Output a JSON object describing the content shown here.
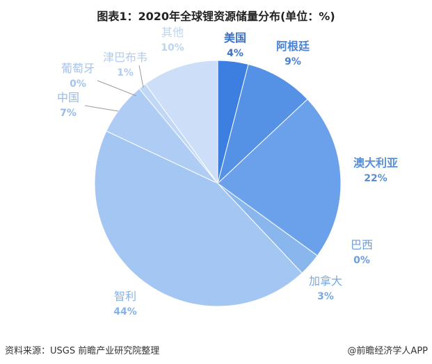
{
  "chart_data": {
    "type": "pie",
    "title": "图表1：2020年全球锂资源储量分布(单位：%)",
    "start": "top",
    "direction": "clockwise",
    "slices": [
      {
        "label": "美国",
        "value": 4,
        "pct": "4%",
        "color": "#3d7fe0",
        "text": "#3a72c8"
      },
      {
        "label": "阿根廷",
        "value": 9,
        "pct": "9%",
        "color": "#5592e6",
        "text": "#4a82d4"
      },
      {
        "label": "澳大利亚",
        "value": 22,
        "pct": "22%",
        "color": "#6aa1ea",
        "text": "#5a8fd8"
      },
      {
        "label": "巴西",
        "value": 0,
        "pct": "0%",
        "color": "#7aacec",
        "text": "#6a9ede"
      },
      {
        "label": "加拿大",
        "value": 3,
        "pct": "3%",
        "color": "#8ab6ee",
        "text": "#78a8e2"
      },
      {
        "label": "智利",
        "value": 44,
        "pct": "44%",
        "color": "#a3c6f3",
        "text": "#86b2e6"
      },
      {
        "label": "中国",
        "value": 7,
        "pct": "7%",
        "color": "#afcdf4",
        "text": "#94bbea"
      },
      {
        "label": "葡萄牙",
        "value": 0,
        "pct": "0%",
        "color": "#b8d2f5",
        "text": "#a3c4ee"
      },
      {
        "label": "津巴布韦",
        "value": 1,
        "pct": "1%",
        "color": "#c0d8f6",
        "text": "#b0ccf0"
      },
      {
        "label": "其他",
        "value": 10,
        "pct": "10%",
        "color": "#cddff8",
        "text": "#bcd4f2"
      }
    ]
  },
  "footer": {
    "source": "资料来源：USGS 前瞻产业研究院整理",
    "brand": "@前瞻经济学人APP"
  }
}
